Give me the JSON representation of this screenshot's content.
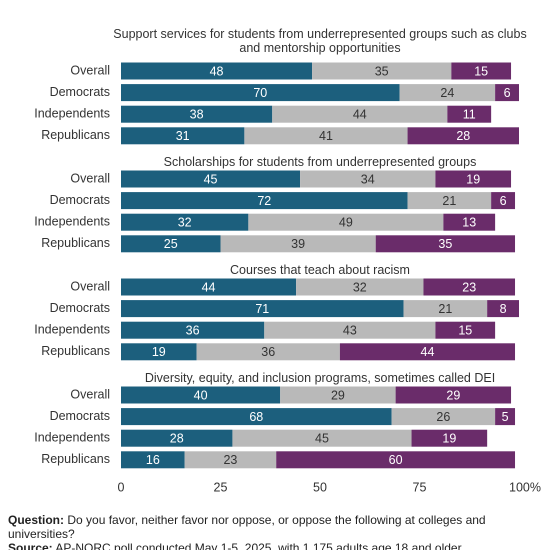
{
  "chart_data": [
    {
      "type": "stacked-bar",
      "title": "Support services for students from underrepresented groups such as clubs and mentorship opportunities",
      "categories": [
        "Overall",
        "Democrats",
        "Independents",
        "Republicans"
      ],
      "series": [
        {
          "color": "#1c5f7d",
          "values": [
            48,
            70,
            38,
            31
          ]
        },
        {
          "color": "#b9b9b9",
          "values": [
            35,
            24,
            44,
            41
          ]
        },
        {
          "color": "#6a2c6a",
          "values": [
            15,
            6,
            11,
            28
          ]
        }
      ],
      "xlim": [
        0,
        100
      ]
    },
    {
      "type": "stacked-bar",
      "title": "Scholarships for students from underrepresented groups",
      "categories": [
        "Overall",
        "Democrats",
        "Independents",
        "Republicans"
      ],
      "series": [
        {
          "color": "#1c5f7d",
          "values": [
            45,
            72,
            32,
            25
          ]
        },
        {
          "color": "#b9b9b9",
          "values": [
            34,
            21,
            49,
            39
          ]
        },
        {
          "color": "#6a2c6a",
          "values": [
            19,
            6,
            13,
            35
          ]
        }
      ],
      "xlim": [
        0,
        100
      ]
    },
    {
      "type": "stacked-bar",
      "title": "Courses that teach about racism",
      "categories": [
        "Overall",
        "Democrats",
        "Independents",
        "Republicans"
      ],
      "series": [
        {
          "color": "#1c5f7d",
          "values": [
            44,
            71,
            36,
            19
          ]
        },
        {
          "color": "#b9b9b9",
          "values": [
            32,
            21,
            43,
            36
          ]
        },
        {
          "color": "#6a2c6a",
          "values": [
            23,
            8,
            15,
            44
          ]
        }
      ],
      "xlim": [
        0,
        100
      ]
    },
    {
      "type": "stacked-bar",
      "title": "Diversity, equity, and inclusion programs, sometimes called DEI",
      "categories": [
        "Overall",
        "Democrats",
        "Independents",
        "Republicans"
      ],
      "series": [
        {
          "color": "#1c5f7d",
          "values": [
            40,
            68,
            28,
            16
          ]
        },
        {
          "color": "#b9b9b9",
          "values": [
            29,
            26,
            45,
            23
          ]
        },
        {
          "color": "#6a2c6a",
          "values": [
            29,
            5,
            19,
            60
          ]
        }
      ],
      "xlim": [
        0,
        100
      ],
      "xticks": [
        0,
        25,
        50,
        75,
        {
          "value": 100,
          "label": "100%"
        }
      ]
    }
  ],
  "footer": {
    "question_label": "Question:",
    "question": "Do you favor, neither favor nor oppose, or oppose the following at colleges and universities?",
    "source_label": "Source:",
    "source": "AP-NORC poll conducted May 1-5, 2025, with 1,175 adults age 18 and older"
  }
}
